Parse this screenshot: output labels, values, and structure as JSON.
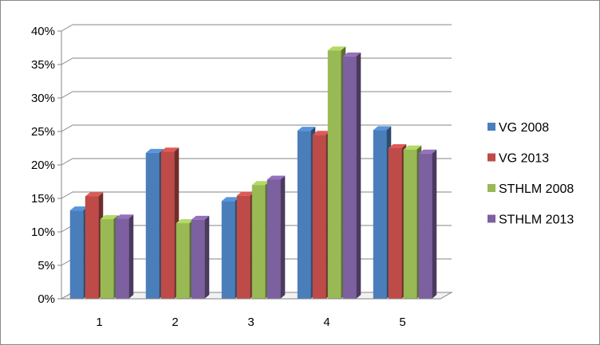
{
  "chart_data": {
    "type": "bar",
    "title": "",
    "xlabel": "",
    "ylabel": "",
    "categories": [
      "1",
      "2",
      "3",
      "4",
      "5"
    ],
    "ylim": [
      0,
      40
    ],
    "yticks": [
      0,
      5,
      10,
      15,
      20,
      25,
      30,
      35,
      40
    ],
    "ytick_format": "percent",
    "grid": true,
    "legend_position": "right",
    "series": [
      {
        "name": "VG 2008",
        "color": "#4a7ebb",
        "values": [
          13.2,
          21.8,
          14.6,
          25.1,
          25.2
        ]
      },
      {
        "name": "VG 2013",
        "color": "#be4b48",
        "values": [
          15.3,
          22.0,
          15.4,
          24.5,
          22.5
        ]
      },
      {
        "name": "STHLM 2008",
        "color": "#98b954",
        "values": [
          11.9,
          11.3,
          17.0,
          37.1,
          22.3
        ]
      },
      {
        "name": "STHLM 2013",
        "color": "#7d60a0",
        "values": [
          12.0,
          11.8,
          17.8,
          36.2,
          21.7
        ]
      }
    ]
  }
}
